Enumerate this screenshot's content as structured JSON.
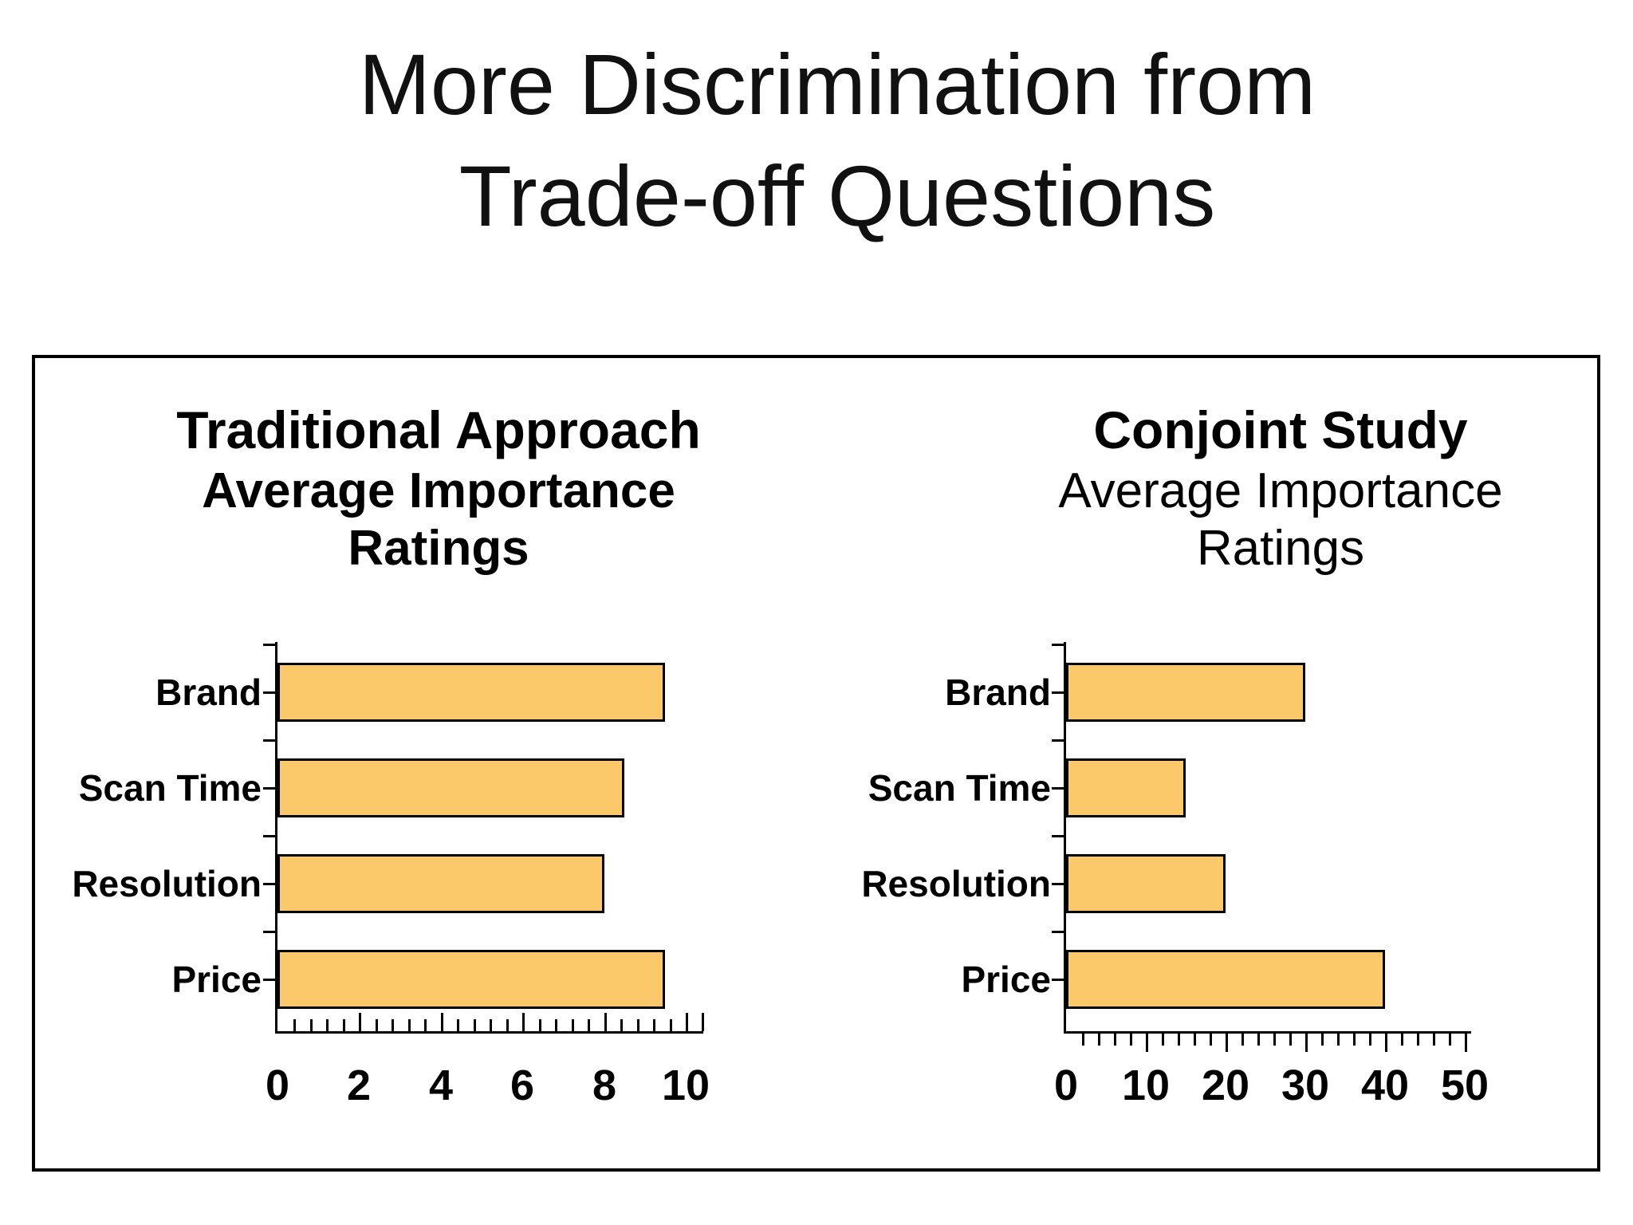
{
  "slide": {
    "title_line1": "More Discrimination from",
    "title_line2": "Trade-off Questions"
  },
  "colors": {
    "bar_fill": "#FCC96A",
    "bar_border": "#000000",
    "axis": "#000000",
    "text": "#000000"
  },
  "chart_data": [
    {
      "type": "bar",
      "orientation": "horizontal",
      "title": "Traditional Approach",
      "subtitle": "Average Importance Ratings",
      "subtitle_lines": [
        "Average Importance",
        "Ratings"
      ],
      "categories": [
        "Brand",
        "Scan Time",
        "Resolution",
        "Price"
      ],
      "values": [
        9.5,
        8.5,
        8,
        9.5
      ],
      "xlim": [
        0,
        10.4
      ],
      "xticks": [
        0,
        2,
        4,
        6,
        8,
        10
      ],
      "minor_tick_step": 0.4,
      "grid": false,
      "legend": false,
      "bar_color": "#FCC96A"
    },
    {
      "type": "bar",
      "orientation": "horizontal",
      "title": "Conjoint Study",
      "subtitle": "Average Importance Ratings",
      "subtitle_lines": [
        "Average Importance",
        "Ratings"
      ],
      "categories": [
        "Brand",
        "Scan Time",
        "Resolution",
        "Price"
      ],
      "values": [
        30,
        15,
        20,
        40
      ],
      "xlim": [
        0,
        50.6
      ],
      "xticks": [
        0,
        10,
        20,
        30,
        40,
        50
      ],
      "minor_tick_step": 2,
      "grid": false,
      "legend": false,
      "bar_color": "#FCC96A"
    }
  ]
}
